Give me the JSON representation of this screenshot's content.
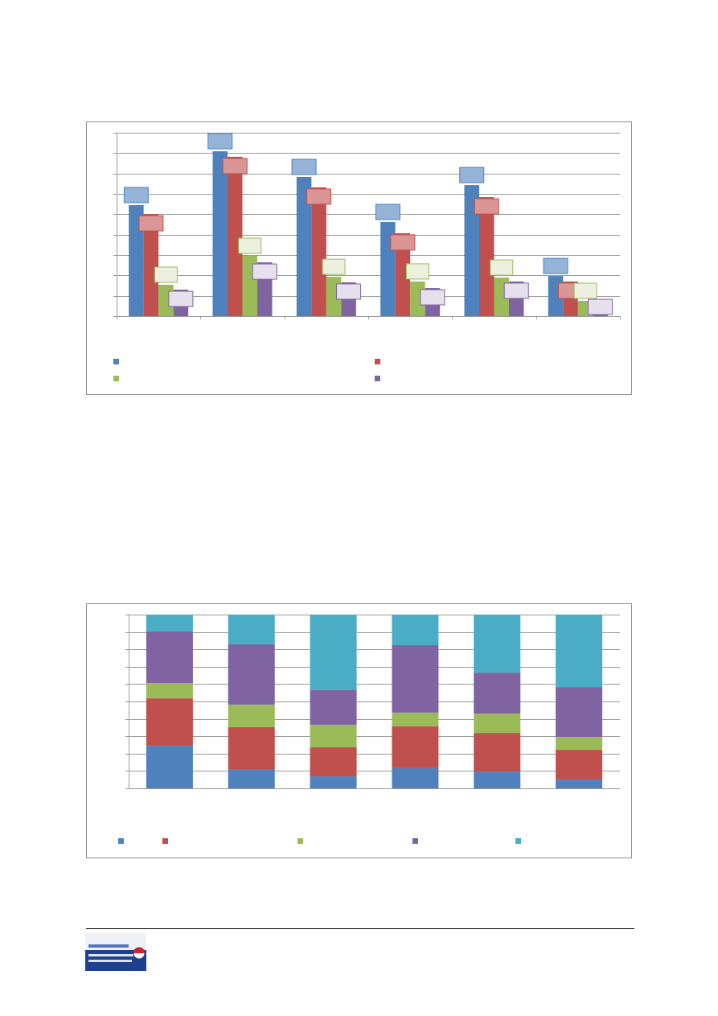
{
  "colors": {
    "series_blue": "#4f81bd",
    "series_red": "#c0504d",
    "series_green": "#9bbb59",
    "series_purple": "#8064a2",
    "series_cyan": "#4bacc6",
    "gridline": "#9a9a9a",
    "frame": "#8c8c8c",
    "logo_blue": "#1f3f8f",
    "logo_red": "#d2232a"
  },
  "chart_data": [
    {
      "type": "bar",
      "ylim": [
        0,
        9
      ],
      "grid": true,
      "legend": "bottom",
      "data_labels": "callout",
      "series": [
        {
          "color": "#4f81bd",
          "label_fill": "#95b3d7",
          "values": [
            5.45,
            8.09,
            6.83,
            4.62,
            6.43,
            1.97
          ]
        },
        {
          "color": "#c0504d",
          "label_fill": "#d99694",
          "values": [
            5.01,
            7.82,
            6.32,
            4.07,
            5.84,
            1.7
          ]
        },
        {
          "color": "#9bbb59",
          "label_fill": "#ebf1de",
          "values": [
            1.54,
            2.96,
            1.93,
            1.7,
            1.89,
            0.75
          ]
        },
        {
          "color": "#8064a2",
          "label_fill": "#e6e0ec",
          "values": [
            1.3,
            2.64,
            1.66,
            1.38,
            1.7,
            0.55
          ]
        }
      ]
    },
    {
      "type": "bar",
      "stacked": "percent",
      "ylim": [
        0,
        100
      ],
      "grid": true,
      "legend": "bottom",
      "series": [
        {
          "color": "#4f81bd",
          "values": [
            24.5,
            11.1,
            6.9,
            11.6,
            9.7,
            5.1
          ]
        },
        {
          "color": "#c0504d",
          "values": [
            27.3,
            24.1,
            16.7,
            24.1,
            22.2,
            17.1
          ]
        },
        {
          "color": "#9bbb59",
          "values": [
            8.8,
            13.0,
            13.0,
            7.9,
            11.1,
            7.4
          ]
        },
        {
          "color": "#8064a2",
          "values": [
            29.7,
            34.7,
            19.9,
            38.8,
            23.6,
            28.7
          ]
        },
        {
          "color": "#4bacc6",
          "values": [
            9.7,
            17.1,
            43.5,
            17.6,
            33.4,
            41.7
          ]
        }
      ]
    }
  ],
  "logo": {
    "icon": "logo-emblem"
  }
}
